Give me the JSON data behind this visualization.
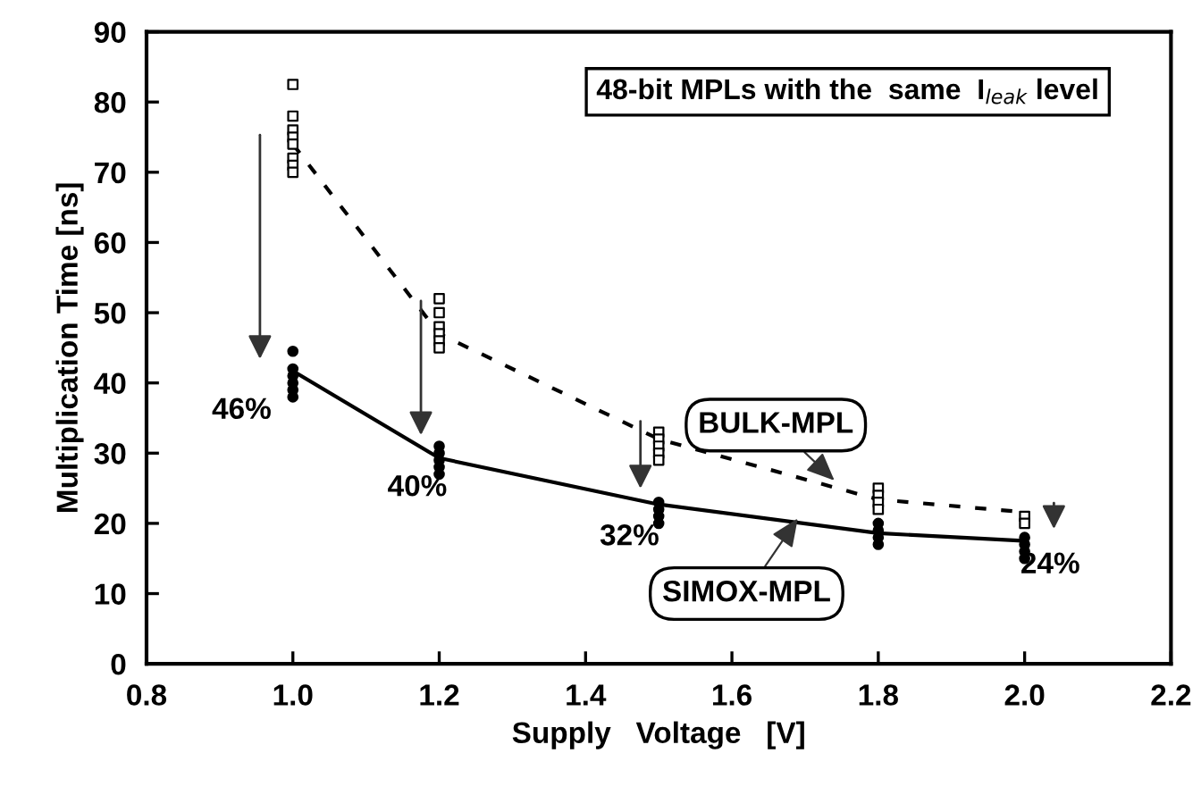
{
  "chart_data": {
    "type": "line",
    "title": "48-bit MPLs with the  same  I$_{leak}$ level",
    "xlabel": "Supply   Voltage   [V]",
    "ylabel": "Multiplication Time [ns]",
    "xlim": [
      0.8,
      2.2
    ],
    "xticks": [
      {
        "value": 0.8,
        "label": "0.8"
      },
      {
        "value": 1.0,
        "label": "1.0"
      },
      {
        "value": 1.2,
        "label": "1.2"
      },
      {
        "value": 1.4,
        "label": "1.4"
      },
      {
        "value": 1.6,
        "label": "1.6"
      },
      {
        "value": 1.8,
        "label": "1.8"
      },
      {
        "value": 2.0,
        "label": "2.0"
      },
      {
        "value": 2.2,
        "label": "2.2"
      }
    ],
    "ylim": [
      0,
      90
    ],
    "yticks": [
      0,
      10,
      20,
      30,
      40,
      50,
      60,
      70,
      80,
      90
    ],
    "series": [
      {
        "type": "scatter",
        "marker": "square",
        "color": "#000000",
        "x": [
          1.0,
          1.0,
          1.0,
          1.0,
          1.0,
          1.0,
          1.0,
          1.0,
          1.2,
          1.2,
          1.2,
          1.2,
          1.2,
          1.2,
          1.5,
          1.5,
          1.5,
          1.5,
          1.5,
          1.8,
          1.8,
          1.8,
          1.8,
          2.0,
          2.0
        ],
        "values": [
          82.5,
          78,
          76,
          75,
          74,
          72,
          71,
          70,
          52,
          50,
          48,
          47,
          46,
          45,
          33,
          32,
          31,
          30,
          29,
          25,
          24,
          23,
          22,
          21,
          20
        ]
      },
      {
        "name": "BULK-MPL",
        "line_style": "dashed",
        "marker": "none",
        "color": "#000000",
        "x": [
          1.0,
          1.2,
          1.5,
          1.8,
          2.0
        ],
        "values": [
          74,
          47,
          32,
          23.4,
          21.6
        ]
      },
      {
        "type": "scatter",
        "marker": "circle",
        "color": "#000000",
        "x": [
          1.0,
          1.0,
          1.0,
          1.0,
          1.0,
          1.0,
          1.2,
          1.2,
          1.2,
          1.2,
          1.2,
          1.5,
          1.5,
          1.5,
          1.5,
          1.8,
          1.8,
          1.8,
          1.8,
          2.0,
          2.0,
          2.0,
          2.0
        ],
        "values": [
          44.5,
          42,
          41,
          40,
          39,
          38,
          31,
          30,
          29,
          28,
          27,
          23,
          22,
          21,
          20,
          20,
          19,
          18,
          17,
          18,
          17,
          16,
          15
        ]
      },
      {
        "name": "SIMOX-MPL",
        "line_style": "solid",
        "marker": "none",
        "color": "#000000",
        "x": [
          1.0,
          1.2,
          1.5,
          1.8,
          2.0
        ],
        "values": [
          41.7,
          29.3,
          22.7,
          18.6,
          17.5
        ]
      }
    ],
    "annotations": [
      "46%",
      "40%",
      "32%",
      "24%"
    ]
  }
}
